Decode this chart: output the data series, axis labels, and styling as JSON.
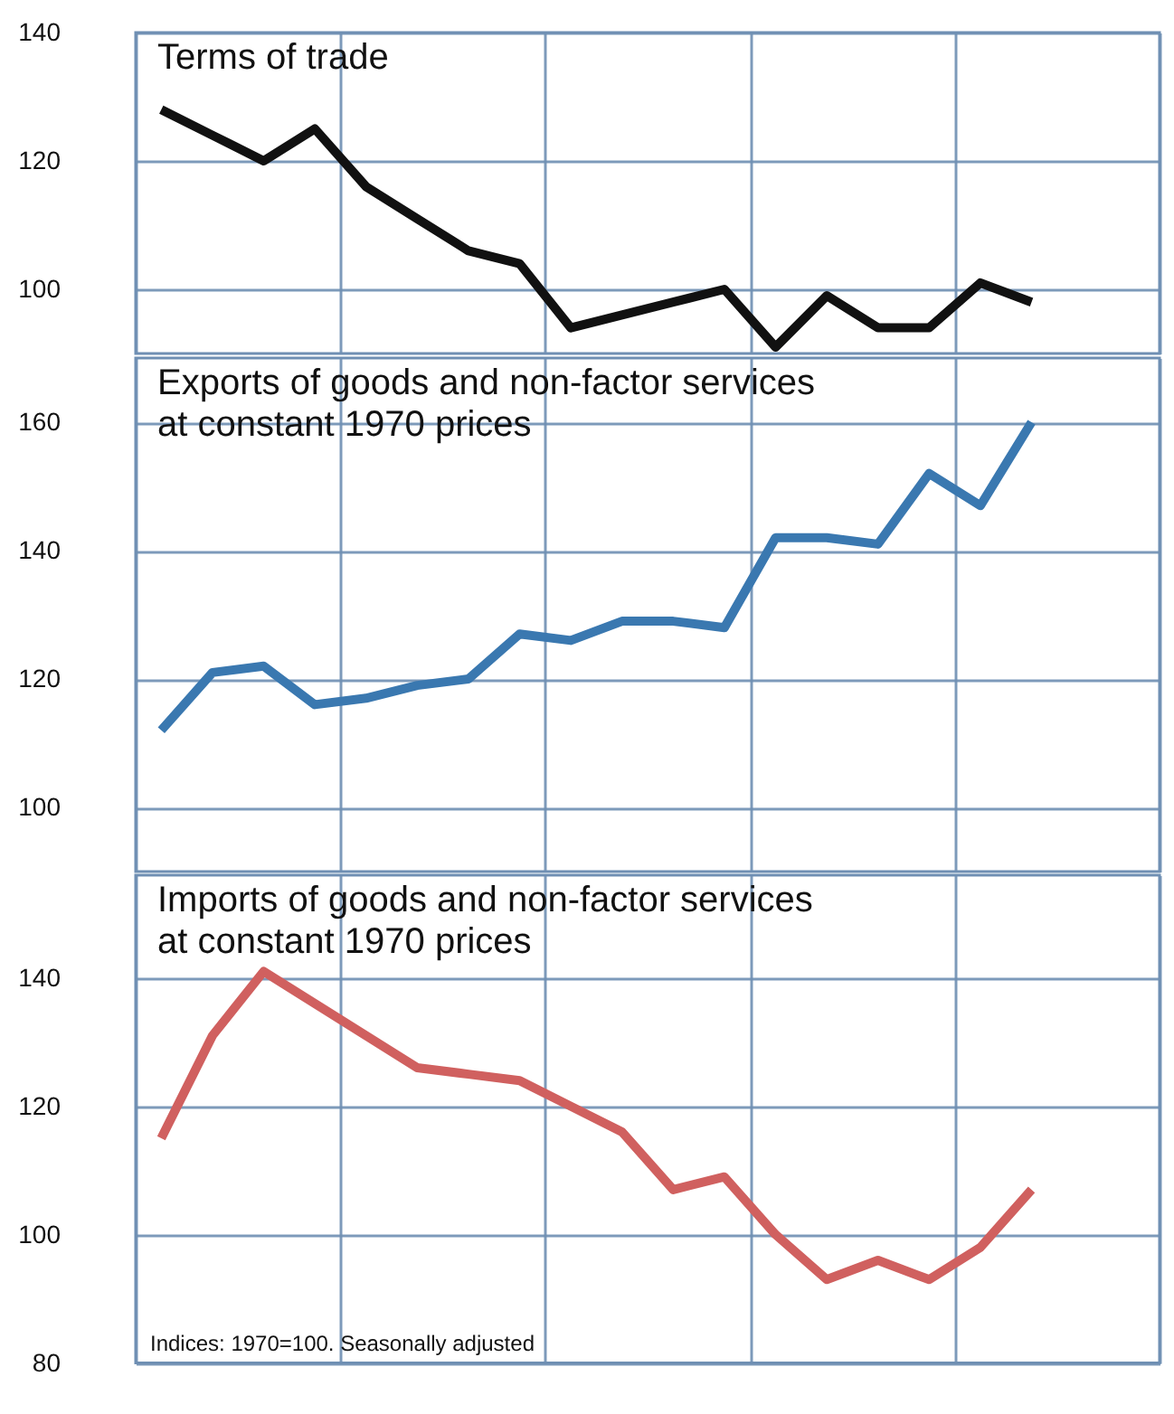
{
  "chart_data": [
    {
      "type": "line",
      "title": "Terms of trade",
      "categories": [
        null,
        null,
        null,
        null,
        null,
        null,
        null,
        null,
        null,
        null,
        null,
        null,
        null,
        null,
        null,
        null,
        null,
        null
      ],
      "series": [
        {
          "color": "#111111",
          "values": [
            128,
            124,
            120,
            125,
            116,
            111,
            106,
            104,
            94,
            96,
            98,
            100,
            91,
            99,
            94,
            94,
            101,
            98
          ]
        }
      ],
      "ylim": [
        90,
        140
      ],
      "yticks": [
        100,
        120,
        140
      ],
      "grid": true,
      "tick_labels": "y"
    },
    {
      "type": "line",
      "title": "Exports of goods and non-factor services at constant 1970 prices",
      "categories": [
        null,
        null,
        null,
        null,
        null,
        null,
        null,
        null,
        null,
        null,
        null,
        null,
        null,
        null,
        null,
        null,
        null,
        null
      ],
      "series": [
        {
          "color": "#3a78b0",
          "values": [
            112,
            121,
            122,
            116,
            117,
            119,
            120,
            127,
            126,
            129,
            129,
            128,
            142,
            142,
            141,
            152,
            147,
            160
          ]
        }
      ],
      "ylim": [
        90,
        170
      ],
      "yticks": [
        100,
        120,
        140,
        160
      ],
      "grid": true,
      "tick_labels": "y"
    },
    {
      "type": "line",
      "title": "Imports of goods and non-factor services at constant 1970 prices",
      "categories": [
        null,
        null,
        null,
        null,
        null,
        null,
        null,
        null,
        null,
        null,
        null,
        null,
        null,
        null,
        null,
        null,
        null,
        null
      ],
      "series": [
        {
          "color": "#d0605f",
          "values": [
            115,
            131,
            141,
            136,
            131,
            126,
            125,
            124,
            120,
            116,
            107,
            109,
            100,
            93,
            96,
            93,
            98,
            107
          ]
        }
      ],
      "ylim": [
        80,
        156
      ],
      "yticks": [
        80,
        100,
        120,
        140
      ],
      "grid": true,
      "tick_labels": "y",
      "annotations": [
        "Indices: 1970=100. Seasonally adjusted"
      ]
    }
  ]
}
